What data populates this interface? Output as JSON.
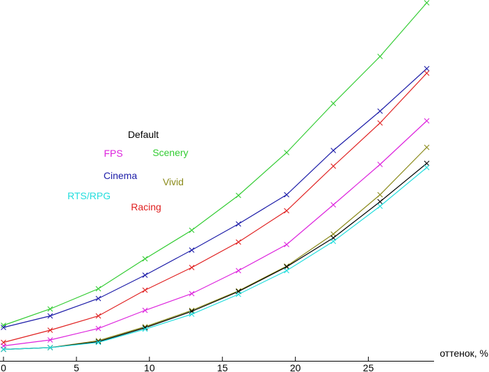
{
  "chart_data": {
    "type": "line",
    "title": "",
    "xlabel": "оттенок, %",
    "ylabel": "",
    "xlim": [
      0,
      29.5
    ],
    "ylim": [
      0,
      100
    ],
    "x_ticks": [
      0,
      5,
      10,
      15,
      20,
      25
    ],
    "x_tick_labels": [
      "0",
      "5",
      "10",
      "15",
      "20",
      "25"
    ],
    "grid": false,
    "x": [
      0,
      3.2,
      6.5,
      9.7,
      12.9,
      16.1,
      19.4,
      22.6,
      25.8,
      29.0
    ],
    "series": [
      {
        "name": "Scenery",
        "color": "#33cc33",
        "values": [
          7.4,
          12.1,
          17.9,
          26.5,
          34.7,
          44.7,
          57.0,
          71.1,
          84.6,
          100.0
        ]
      },
      {
        "name": "Cinema",
        "color": "#1c1ca8",
        "values": [
          6.8,
          10.1,
          15.1,
          21.8,
          29.0,
          36.5,
          44.9,
          57.6,
          68.9,
          81.1
        ]
      },
      {
        "name": "Racing",
        "color": "#e02020",
        "values": [
          2.5,
          6.0,
          10.1,
          17.5,
          24.0,
          31.3,
          40.3,
          53.1,
          65.5,
          79.8
        ]
      },
      {
        "name": "FPS",
        "color": "#dd22dd",
        "values": [
          1.5,
          3.2,
          6.5,
          11.7,
          16.5,
          23.1,
          30.6,
          42.0,
          53.6,
          66.1
        ]
      },
      {
        "name": "Vivid",
        "color": "#8a8a1a",
        "values": [
          0.5,
          1.0,
          3.0,
          7.0,
          11.7,
          17.3,
          24.4,
          33.6,
          44.9,
          58.5
        ]
      },
      {
        "name": "Default",
        "color": "#000000",
        "values": [
          0.5,
          1.0,
          2.7,
          6.7,
          11.4,
          17.1,
          24.2,
          32.5,
          42.9,
          53.9
        ]
      },
      {
        "name": "RTS/RPG",
        "color": "#22dddd",
        "values": [
          0.5,
          1.0,
          2.5,
          6.3,
          10.6,
          16.3,
          23.1,
          31.5,
          41.6,
          52.7
        ]
      }
    ],
    "labels": [
      {
        "text": "Default",
        "color": "#000000"
      },
      {
        "text": "FPS",
        "color": "#dd22dd"
      },
      {
        "text": "Scenery",
        "color": "#33cc33"
      },
      {
        "text": "Cinema",
        "color": "#1c1ca8"
      },
      {
        "text": "Vivid",
        "color": "#8a8a1a"
      },
      {
        "text": "RTS/RPG",
        "color": "#22dddd"
      },
      {
        "text": "Racing",
        "color": "#e02020"
      }
    ]
  }
}
